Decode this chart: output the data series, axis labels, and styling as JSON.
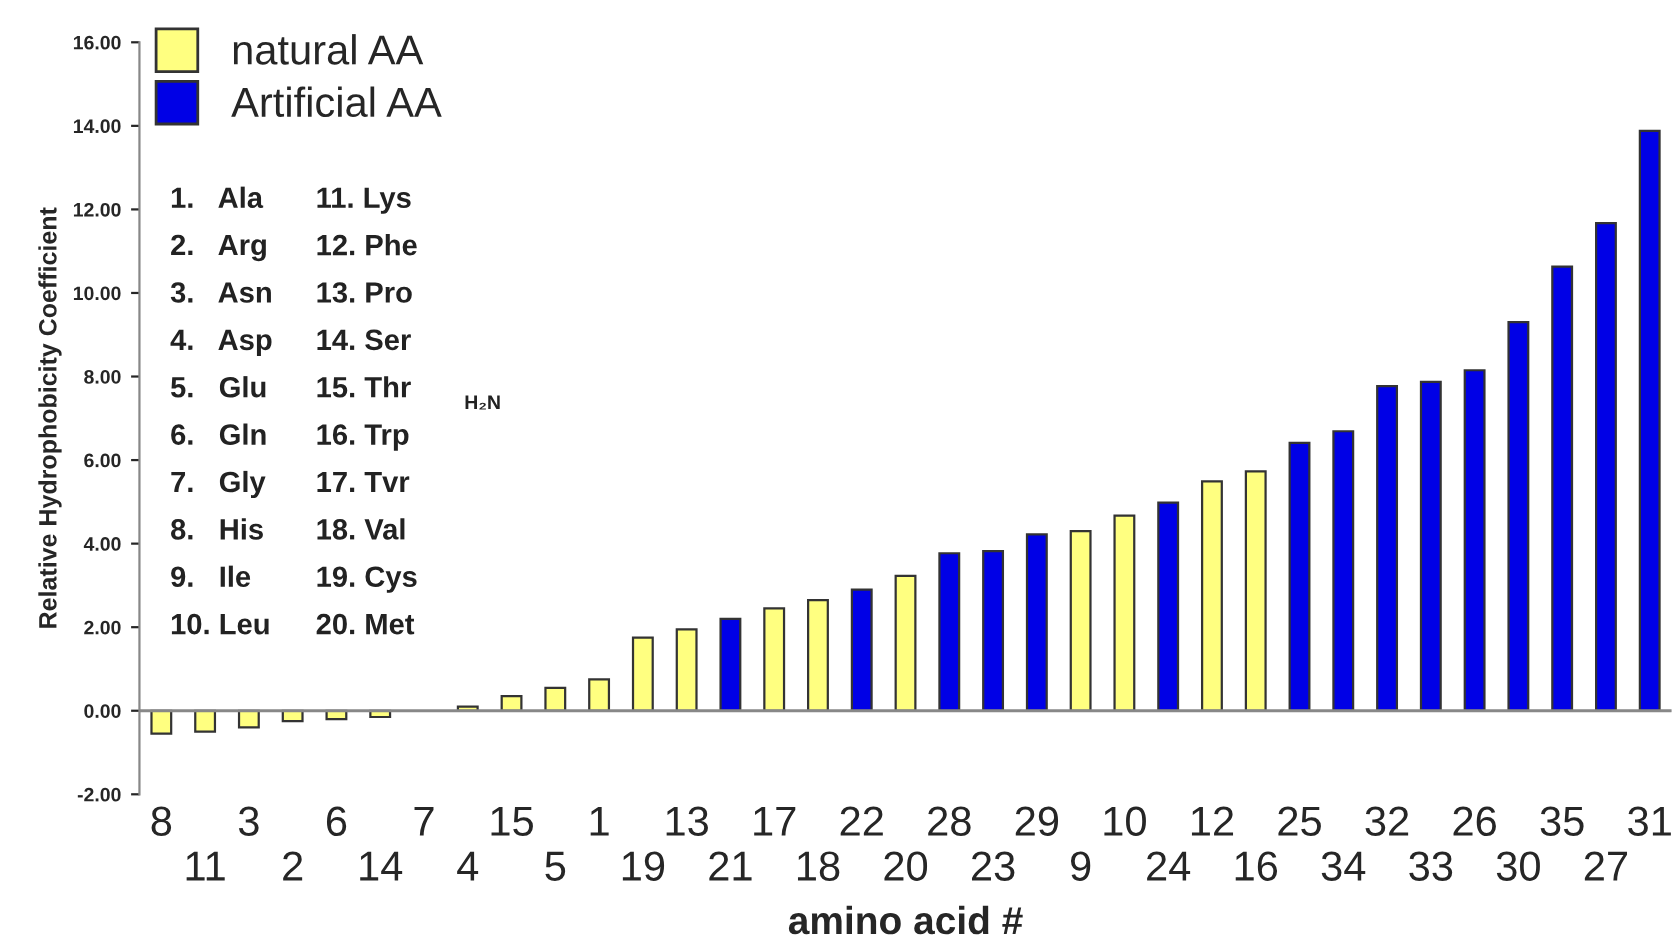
{
  "chart_data": {
    "type": "bar",
    "xlabel": "amino acid #",
    "ylabel": "Relative Hydrophobicity Coefficient",
    "categories": [
      "8",
      "11",
      "3",
      "2",
      "6",
      "14",
      "7",
      "4",
      "15",
      "5",
      "1",
      "19",
      "13",
      "21",
      "17",
      "18",
      "22",
      "20",
      "28",
      "23",
      "29",
      "9",
      "10",
      "24",
      "12",
      "16",
      "25",
      "34",
      "32",
      "33",
      "26",
      "30",
      "35",
      "27",
      "31"
    ],
    "series": [
      {
        "name": "natural AA",
        "color": "#ffff80",
        "values": [
          -0.55,
          -0.5,
          -0.4,
          -0.25,
          -0.2,
          -0.15,
          null,
          0.1,
          0.35,
          0.55,
          0.75,
          1.75,
          1.95,
          null,
          2.45,
          2.65,
          null,
          3.23,
          null,
          null,
          null,
          4.3,
          4.67,
          null,
          5.49,
          5.73,
          null,
          null,
          null,
          null,
          null,
          null,
          null,
          null,
          null
        ]
      },
      {
        "name": "Artificial AA",
        "color": "#0000e6",
        "values": [
          null,
          null,
          null,
          null,
          null,
          null,
          null,
          null,
          null,
          null,
          null,
          null,
          null,
          2.2,
          null,
          null,
          2.9,
          null,
          3.77,
          3.82,
          4.22,
          null,
          null,
          4.98,
          null,
          null,
          6.41,
          6.69,
          7.77,
          7.87,
          8.15,
          9.3,
          10.63,
          11.67,
          13.88
        ]
      }
    ],
    "ylim": [
      -2,
      16
    ],
    "yticks": [
      {
        "value": -2,
        "label": "-2.00"
      },
      {
        "value": 0,
        "label": "0.00"
      },
      {
        "value": 2,
        "label": "2.00"
      },
      {
        "value": 4,
        "label": "4.00"
      },
      {
        "value": 6,
        "label": "6.00"
      },
      {
        "value": 8,
        "label": "8.00"
      },
      {
        "value": 10,
        "label": "10.00"
      },
      {
        "value": 12,
        "label": "12.00"
      },
      {
        "value": 14,
        "label": "14.00"
      },
      {
        "value": 16,
        "label": "16.00"
      }
    ],
    "legend": "top left",
    "grid": false,
    "annotations": [
      "1.   Ala",
      "2.   Arg",
      "3.   Asn",
      "4.   Asp",
      "5.   Glu",
      "6.   Gln",
      "7.   Gly",
      "8.   His",
      "9.   Ile",
      "10. Leu",
      "11. Lys",
      "12. Phe",
      "13. Pro",
      "14. Ser",
      "15. Thr",
      "16. Trp",
      "17. Tvr",
      "18. Val",
      "19. Cys",
      "20. Met",
      "H₂N"
    ]
  }
}
